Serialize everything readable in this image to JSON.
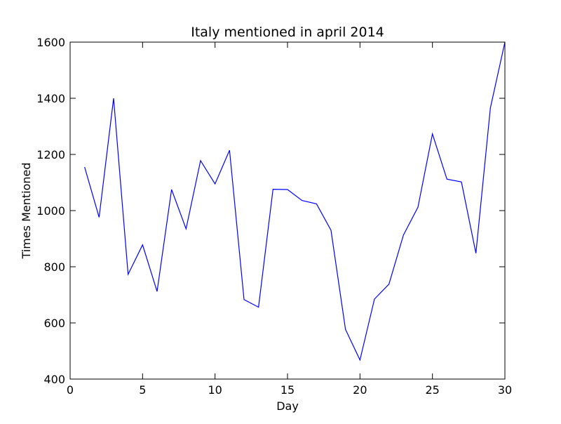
{
  "chart_data": {
    "type": "line",
    "title": "Italy mentioned in april 2014",
    "xlabel": "Day",
    "ylabel": "Times Mentioned",
    "xlim": [
      0,
      30
    ],
    "ylim": [
      400,
      1600
    ],
    "xticks": [
      0,
      5,
      10,
      15,
      20,
      25,
      30
    ],
    "yticks": [
      400,
      600,
      800,
      1000,
      1200,
      1400,
      1600
    ],
    "grid": false,
    "legend": "none",
    "series": [
      {
        "color": "#0000ff",
        "x": [
          1,
          2,
          3,
          4,
          5,
          6,
          7,
          8,
          9,
          10,
          11,
          12,
          13,
          14,
          15,
          16,
          17,
          18,
          19,
          20,
          21,
          22,
          23,
          24,
          25,
          26,
          27,
          28,
          29,
          30
        ],
        "y": [
          1155,
          976,
          1400,
          773,
          878,
          712,
          1075,
          935,
          1178,
          1095,
          1215,
          683,
          656,
          1076,
          1075,
          1036,
          1024,
          930,
          577,
          468,
          685,
          738,
          913,
          1012,
          1273,
          1112,
          1102,
          848,
          1366,
          1600
        ]
      }
    ]
  }
}
